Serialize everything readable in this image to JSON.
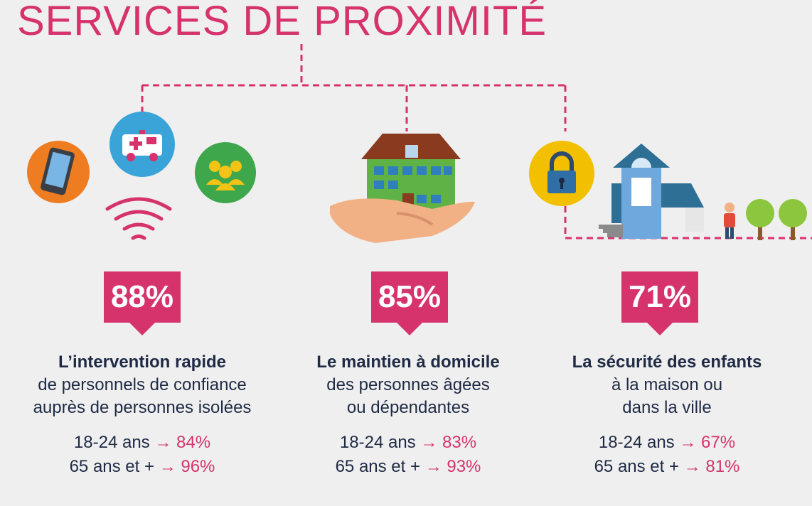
{
  "title": "SERVICES DE PROXIMITÉ",
  "colors": {
    "accent": "#d6336c",
    "text": "#1f2a44",
    "background": "#efefef"
  },
  "icons": [
    "phone-icon",
    "ambulance-icon",
    "group-icon",
    "signal-icon",
    "house-in-hand-icon",
    "padlock-icon",
    "house-icon",
    "person-icon",
    "tree-icon"
  ],
  "columns": [
    {
      "percent": "88%",
      "heading": "L’intervention rapide",
      "line1": "de personnels de confiance",
      "line2": "auprès de personnes isolées",
      "stat1_label": "18-24 ans",
      "stat1_value": "84%",
      "stat2_label": "65 ans et +",
      "stat2_value": "96%"
    },
    {
      "percent": "85%",
      "heading": "Le maintien à domicile",
      "line1": "des personnes âgées",
      "line2": "ou dépendantes",
      "stat1_label": "18-24 ans",
      "stat1_value": "83%",
      "stat2_label": "65 ans et +",
      "stat2_value": "93%"
    },
    {
      "percent": "71%",
      "heading": "La sécurité des enfants",
      "line1": "à la maison ou",
      "line2": "dans la ville",
      "stat1_label": "18-24 ans",
      "stat1_value": "67%",
      "stat2_label": "65 ans et +",
      "stat2_value": "81%"
    }
  ]
}
